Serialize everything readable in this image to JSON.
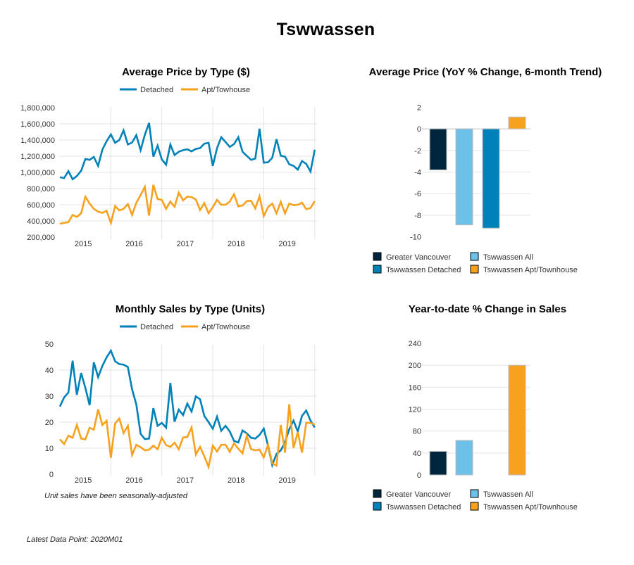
{
  "page": {
    "title": "Tswwassen",
    "sales_note": "Unit sales have been seasonally-adjusted",
    "latest_data_point": "Latest Data Point: 2020M01"
  },
  "colors": {
    "detached": "#0082B9",
    "apt": "#F6A21E",
    "greater_vancouver": "#00263E",
    "tswwassen_all": "#6DC0E8",
    "tswwassen_detached": "#0082B9",
    "tswwassen_apt": "#F6A21E",
    "grid": "#e3e3e3"
  },
  "chart_data": [
    {
      "id": "avg-price",
      "type": "line",
      "title": "Average Price by Type ($)",
      "xlabel": "",
      "ylabel": "",
      "x_start": "2015-01",
      "x_end": "2020-01",
      "x_tick_labels": [
        "2015",
        "2016",
        "2017",
        "2018",
        "2019"
      ],
      "y_tick_labels": [
        "200,000",
        "400,000",
        "600,000",
        "800,000",
        "1,000,000",
        "1,200,000",
        "1,400,000",
        "1,600,000",
        "1,800,000"
      ],
      "ylim": [
        200000,
        1800000
      ],
      "y_ticks": [
        200000,
        400000,
        600000,
        800000,
        1000000,
        1200000,
        1400000,
        1600000,
        1800000
      ],
      "grid": true,
      "legend_position": "top-center",
      "series": [
        {
          "name": "Detached",
          "color_key": "detached",
          "values": [
            940000,
            930000,
            1015000,
            915000,
            955000,
            1020000,
            1165000,
            1155000,
            1190000,
            1080000,
            1280000,
            1385000,
            1470000,
            1365000,
            1400000,
            1520000,
            1345000,
            1370000,
            1460000,
            1275000,
            1465000,
            1610000,
            1195000,
            1330000,
            1160000,
            1095000,
            1345000,
            1215000,
            1255000,
            1275000,
            1285000,
            1260000,
            1290000,
            1300000,
            1355000,
            1365000,
            1080000,
            1300000,
            1435000,
            1375000,
            1315000,
            1350000,
            1435000,
            1255000,
            1205000,
            1155000,
            1170000,
            1540000,
            1120000,
            1125000,
            1180000,
            1410000,
            1205000,
            1195000,
            1100000,
            1080000,
            1035000,
            1140000,
            1105000,
            1010000,
            1280000
          ]
        },
        {
          "name": "Apt/Towhouse",
          "color_key": "apt",
          "values": [
            365000,
            375000,
            385000,
            475000,
            450000,
            495000,
            700000,
            615000,
            550000,
            515000,
            500000,
            525000,
            375000,
            585000,
            530000,
            550000,
            610000,
            475000,
            625000,
            720000,
            820000,
            465000,
            845000,
            670000,
            660000,
            550000,
            640000,
            575000,
            750000,
            655000,
            700000,
            695000,
            665000,
            535000,
            620000,
            495000,
            570000,
            660000,
            600000,
            600000,
            640000,
            730000,
            580000,
            590000,
            645000,
            650000,
            555000,
            705000,
            460000,
            570000,
            615000,
            495000,
            635000,
            495000,
            615000,
            595000,
            600000,
            625000,
            545000,
            560000,
            645000
          ]
        }
      ]
    },
    {
      "id": "yoy-price",
      "type": "bar",
      "title": "Average Price (YoY % Change, 6-month Trend)",
      "categories": [
        "Greater Vancouver",
        "Tswwassen All",
        "Tswwassen Detached",
        "Tswwassen Apt/Townhouse"
      ],
      "values": [
        -3.8,
        -8.9,
        -9.2,
        1.1
      ],
      "color_keys": [
        "greater_vancouver",
        "tswwassen_all",
        "tswwassen_detached",
        "tswwassen_apt"
      ],
      "ylim": [
        -10,
        2
      ],
      "y_ticks": [
        -10,
        -8,
        -6,
        -4,
        -2,
        0,
        2
      ],
      "y_tick_labels": [
        "-10",
        "-8",
        "-6",
        "-4",
        "-2",
        "0",
        "2"
      ],
      "grid": true,
      "legend_position": "bottom",
      "legend": [
        "Greater Vancouver",
        "Tswwassen All",
        "Tswwassen Detached",
        "Tswwassen Apt/Townhouse"
      ]
    },
    {
      "id": "monthly-sales",
      "type": "line",
      "title": "Monthly Sales by Type (Units)",
      "x_start": "2015-01",
      "x_end": "2020-01",
      "x_tick_labels": [
        "2015",
        "2016",
        "2017",
        "2018",
        "2019"
      ],
      "y_tick_labels": [
        "0",
        "10",
        "20",
        "30",
        "40",
        "50"
      ],
      "ylim": [
        0,
        50
      ],
      "y_ticks": [
        0,
        10,
        20,
        30,
        40,
        50
      ],
      "grid": true,
      "legend_position": "top-center",
      "series": [
        {
          "name": "Detached",
          "color_key": "detached",
          "values": [
            26.0,
            29.5,
            31.4,
            43.6,
            30.5,
            38.9,
            33.1,
            26.5,
            43.0,
            37.3,
            41.6,
            44.9,
            47.5,
            43.4,
            42.3,
            42.1,
            41.2,
            32.6,
            26.8,
            15.5,
            13.5,
            13.7,
            25.4,
            18.6,
            19.7,
            17.9,
            35.1,
            20.2,
            24.8,
            22.7,
            27.1,
            24.1,
            29.9,
            28.8,
            22.4,
            20.0,
            17.5,
            22.1,
            16.7,
            18.6,
            16.4,
            12.8,
            12.2,
            16.8,
            15.7,
            14.0,
            13.7,
            15.1,
            17.5,
            11.0,
            3.5,
            7.8,
            9.2,
            12.3,
            17.3,
            20.6,
            16.4,
            22.4,
            24.5,
            20.6,
            18.0
          ]
        },
        {
          "name": "Apt/Towhouse",
          "color_key": "apt",
          "values": [
            13.4,
            11.6,
            14.8,
            14.0,
            18.9,
            13.7,
            13.4,
            17.8,
            17.1,
            24.9,
            18.9,
            20.5,
            6.3,
            19.5,
            21.4,
            15.8,
            18.6,
            7.4,
            11.3,
            10.4,
            9.2,
            9.4,
            11.0,
            9.6,
            14.0,
            11.2,
            10.5,
            12.1,
            9.6,
            14.1,
            14.3,
            18.0,
            7.6,
            10.5,
            6.9,
            2.8,
            11.0,
            8.7,
            11.3,
            11.3,
            8.6,
            11.9,
            9.8,
            8.0,
            14.8,
            9.6,
            9.2,
            9.4,
            6.5,
            11.3,
            4.2,
            3.3,
            18.9,
            8.3,
            26.9,
            10.1,
            16.2,
            8.3,
            19.8,
            19.7,
            19.1
          ]
        }
      ]
    },
    {
      "id": "ytd-sales",
      "type": "bar",
      "title": "Year-to-date % Change in Sales",
      "categories": [
        "Greater Vancouver",
        "Tswwassen All",
        "Tswwassen Detached",
        "Tswwassen Apt/Townhouse"
      ],
      "values": [
        43,
        63,
        null,
        200
      ],
      "color_keys": [
        "greater_vancouver",
        "tswwassen_all",
        "tswwassen_detached",
        "tswwassen_apt"
      ],
      "ylim": [
        0,
        240
      ],
      "y_ticks": [
        0,
        40,
        80,
        120,
        160,
        200,
        240
      ],
      "y_tick_labels": [
        "0",
        "40",
        "80",
        "120",
        "160",
        "200",
        "240"
      ],
      "grid": true,
      "legend_position": "bottom",
      "legend": [
        "Greater Vancouver",
        "Tswwassen All",
        "Tswwassen Detached",
        "Tswwassen Apt/Townhouse"
      ]
    }
  ]
}
